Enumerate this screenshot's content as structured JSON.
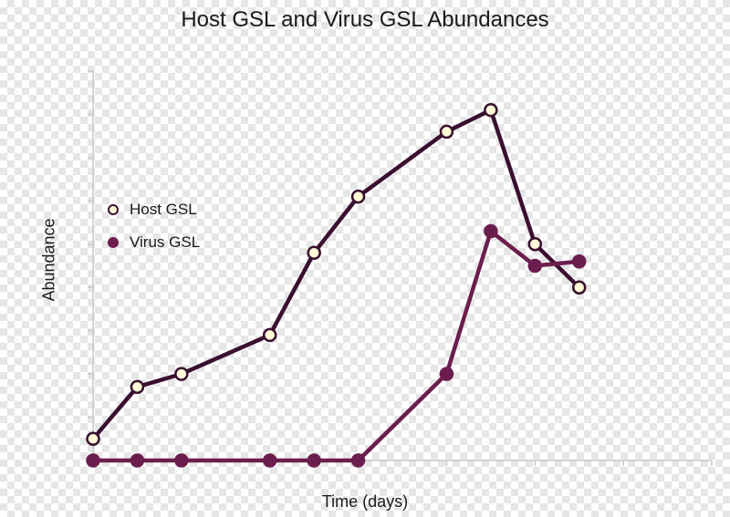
{
  "chart_data": {
    "type": "line",
    "title": "Host GSL and Virus GSL Abundances",
    "xlabel": "Time (days)",
    "ylabel": "Abundance",
    "xlim": [
      0,
      14
    ],
    "ylim": [
      0,
      9
    ],
    "grid": false,
    "legend_position": "left",
    "x_ticks": [
      0,
      2,
      4,
      6,
      8,
      10,
      12,
      14
    ],
    "y_ticks": [
      0,
      1,
      2,
      3,
      4,
      5,
      6,
      7,
      8,
      9
    ],
    "series": [
      {
        "name": "Host GSL",
        "marker": "open-circle",
        "line_color": "#3a1030",
        "marker_fill": "#fffbd8",
        "x": [
          0,
          1,
          2,
          4,
          5,
          6,
          8,
          9,
          10,
          11
        ],
        "y": [
          0.5,
          1.7,
          2.0,
          2.9,
          4.8,
          6.1,
          7.6,
          8.1,
          5.0,
          4.0
        ]
      },
      {
        "name": "Virus GSL",
        "marker": "filled-circle",
        "line_color": "#6b1e4e",
        "marker_fill": "#6b1e4e",
        "x": [
          0,
          1,
          2,
          4,
          5,
          6,
          8,
          9,
          10,
          11
        ],
        "y": [
          0,
          0,
          0,
          0,
          0,
          0,
          2.0,
          5.3,
          4.5,
          4.6
        ]
      }
    ]
  }
}
